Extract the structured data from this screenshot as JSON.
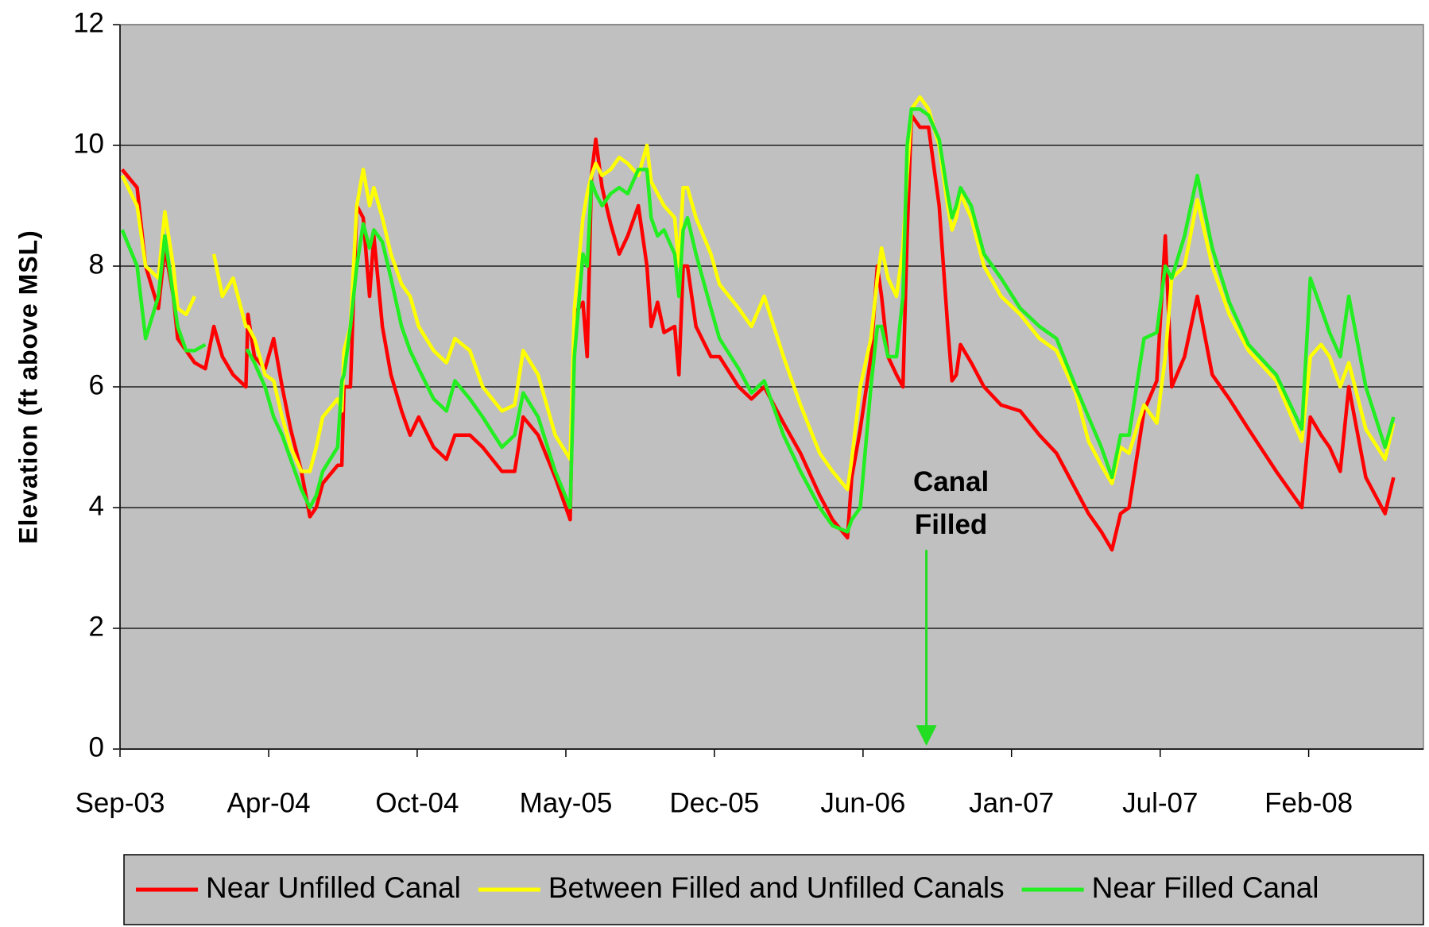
{
  "chart_data": {
    "type": "line",
    "y_label": "Elevation (ft above MSL)",
    "annotation": {
      "lines": [
        "Canal",
        "Filled"
      ],
      "x": 37.8,
      "color": "#22dd22"
    },
    "x": [
      0.1,
      0.8,
      1.2,
      1.8,
      2.1,
      2.5,
      2.7,
      3.1,
      3.5,
      4.0,
      4.4,
      4.8,
      5.3,
      5.9,
      6.0,
      6.3,
      6.8,
      7.2,
      7.6,
      8.0,
      8.5,
      8.9,
      9.2,
      9.5,
      10.2,
      10.4,
      10.5,
      10.8,
      11.1,
      11.4,
      11.7,
      11.9,
      12.3,
      12.7,
      13.2,
      13.6,
      14.0,
      14.7,
      15.3,
      15.7,
      16.4,
      17.0,
      17.9,
      18.5,
      18.9,
      19.6,
      20.4,
      21.1,
      21.3,
      21.7,
      21.9,
      22.1,
      22.3,
      22.6,
      23.0,
      23.4,
      23.8,
      24.3,
      24.7,
      24.9,
      25.2,
      25.5,
      26.0,
      26.2,
      26.4,
      26.6,
      27.0,
      27.7,
      28.1,
      29.0,
      29.6,
      30.2,
      31.1,
      31.9,
      32.8,
      33.4,
      34.1,
      34.3,
      34.7,
      35.2,
      35.5,
      35.7,
      36.0,
      36.4,
      36.7,
      36.9,
      37.1,
      37.5,
      37.9,
      38.4,
      38.8,
      39.0,
      39.2,
      39.4,
      39.9,
      40.5,
      41.3,
      42.2,
      43.1,
      43.9,
      44.8,
      45.4,
      46.0,
      46.5,
      46.9,
      47.3,
      48.0,
      48.6,
      49.0,
      49.3,
      49.9,
      50.5,
      51.2,
      52.0,
      52.9,
      54.2,
      55.4,
      55.8,
      56.3,
      56.7,
      57.2,
      57.6,
      58.4,
      59.3,
      59.7
    ],
    "series": [
      {
        "name": "Near Unfilled Canal",
        "color": "#ff0000",
        "values": [
          9.6,
          9.3,
          8.0,
          7.3,
          8.3,
          7.5,
          6.8,
          6.6,
          6.4,
          6.3,
          7.0,
          6.5,
          6.2,
          6.0,
          7.2,
          6.5,
          6.3,
          6.8,
          6.0,
          5.3,
          4.6,
          3.85,
          4.0,
          4.4,
          4.7,
          4.7,
          6.0,
          6.0,
          9.0,
          8.8,
          7.5,
          8.5,
          7.0,
          6.2,
          5.6,
          5.2,
          5.5,
          5.0,
          4.8,
          5.2,
          5.2,
          5.0,
          4.6,
          4.6,
          5.5,
          5.2,
          4.5,
          3.8,
          7.2,
          7.4,
          6.5,
          9.5,
          10.1,
          9.3,
          8.7,
          8.2,
          8.5,
          9.0,
          8.0,
          7.0,
          7.4,
          6.9,
          7.0,
          6.2,
          8.0,
          8.0,
          7.0,
          6.5,
          6.5,
          6.0,
          5.8,
          6.0,
          5.4,
          4.9,
          4.2,
          3.8,
          3.5,
          4.5,
          5.3,
          6.5,
          8.0,
          7.5,
          6.5,
          6.2,
          6.0,
          8.5,
          10.5,
          10.3,
          10.3,
          9.0,
          7.0,
          6.1,
          6.2,
          6.7,
          6.4,
          6.0,
          5.7,
          5.6,
          5.2,
          4.9,
          4.3,
          3.9,
          3.6,
          3.3,
          3.9,
          4.0,
          5.6,
          6.1,
          8.5,
          6.0,
          6.5,
          7.5,
          6.2,
          5.8,
          5.3,
          4.6,
          4.0,
          5.5,
          5.2,
          5.0,
          4.6,
          6.0,
          4.5,
          3.9,
          4.5
        ]
      },
      {
        "name": "Between Filled and Unfilled Canals",
        "color": "#ffff00",
        "values": [
          9.5,
          9.0,
          8.0,
          7.8,
          8.9,
          8.0,
          7.3,
          7.2,
          7.5,
          null,
          8.2,
          7.5,
          7.8,
          7.0,
          7.0,
          6.8,
          6.2,
          6.1,
          5.5,
          5.0,
          4.6,
          4.6,
          5.0,
          5.5,
          5.8,
          5.6,
          6.6,
          7.0,
          9.0,
          9.6,
          9.0,
          9.3,
          8.8,
          8.2,
          7.7,
          7.5,
          7.0,
          6.6,
          6.4,
          6.8,
          6.6,
          6.0,
          5.6,
          5.7,
          6.6,
          6.2,
          5.2,
          4.8,
          7.3,
          8.8,
          9.2,
          9.5,
          9.7,
          9.5,
          9.6,
          9.8,
          9.7,
          9.5,
          10.0,
          9.4,
          9.2,
          9.0,
          8.8,
          8.0,
          9.3,
          9.3,
          8.8,
          8.2,
          7.7,
          7.3,
          7.0,
          7.5,
          6.5,
          5.7,
          4.9,
          4.6,
          4.3,
          4.8,
          6.0,
          6.8,
          7.8,
          8.3,
          7.8,
          7.5,
          8.3,
          9.5,
          10.6,
          10.8,
          10.6,
          10.0,
          9.0,
          8.6,
          8.8,
          9.2,
          8.8,
          8.0,
          7.5,
          7.2,
          6.8,
          6.6,
          5.9,
          5.1,
          4.7,
          4.4,
          5.0,
          4.9,
          5.7,
          5.4,
          6.5,
          7.8,
          8.0,
          9.1,
          8.0,
          7.2,
          6.6,
          6.1,
          5.1,
          6.5,
          6.7,
          6.5,
          6.0,
          6.4,
          5.3,
          4.8,
          5.4
        ]
      },
      {
        "name": "Near Filled Canal",
        "color": "#22ee22",
        "values": [
          8.6,
          8.0,
          6.8,
          7.5,
          8.5,
          7.5,
          7.0,
          6.6,
          6.6,
          6.7,
          null,
          null,
          null,
          6.6,
          6.6,
          6.4,
          6.0,
          5.5,
          5.2,
          4.8,
          4.3,
          4.0,
          4.2,
          4.6,
          5.0,
          6.1,
          6.2,
          7.0,
          8.0,
          8.7,
          8.3,
          8.6,
          8.4,
          7.8,
          7.0,
          6.6,
          6.3,
          5.8,
          5.6,
          6.1,
          5.8,
          5.5,
          5.0,
          5.2,
          5.9,
          5.5,
          4.6,
          4.0,
          6.5,
          8.2,
          8.0,
          9.4,
          9.2,
          9.0,
          9.2,
          9.3,
          9.2,
          9.6,
          9.6,
          8.8,
          8.5,
          8.6,
          8.2,
          7.5,
          8.6,
          8.8,
          8.2,
          7.3,
          6.8,
          6.3,
          5.9,
          6.1,
          5.2,
          4.6,
          4.0,
          3.7,
          3.6,
          3.8,
          4.0,
          6.0,
          7.0,
          7.0,
          6.5,
          6.5,
          7.5,
          10.0,
          10.6,
          10.6,
          10.5,
          10.1,
          9.2,
          8.8,
          9.0,
          9.3,
          9.0,
          8.2,
          7.8,
          7.3,
          7.0,
          6.8,
          6.0,
          5.5,
          5.0,
          4.5,
          5.2,
          5.2,
          6.8,
          6.9,
          8.0,
          7.8,
          8.5,
          9.5,
          8.3,
          7.4,
          6.7,
          6.2,
          5.3,
          7.8,
          7.3,
          6.9,
          6.5,
          7.5,
          6.0,
          5.0,
          5.5
        ]
      }
    ],
    "xlim": [
      0,
      61.1
    ],
    "xticks": [
      {
        "value": 0,
        "label": "Sep-03"
      },
      {
        "value": 6.97,
        "label": "Apr-04"
      },
      {
        "value": 13.93,
        "label": "Oct-04"
      },
      {
        "value": 20.9,
        "label": "May-05"
      },
      {
        "value": 27.86,
        "label": "Dec-05"
      },
      {
        "value": 34.83,
        "label": "Jun-06"
      },
      {
        "value": 41.79,
        "label": "Jan-07"
      },
      {
        "value": 48.76,
        "label": "Jul-07"
      },
      {
        "value": 55.72,
        "label": "Feb-08"
      }
    ],
    "ylim": [
      0,
      12
    ],
    "yticks": [
      0,
      2,
      4,
      6,
      8,
      10,
      12
    ],
    "grid": true,
    "legend": "bottom",
    "plot_background": "#c0c0c0"
  }
}
